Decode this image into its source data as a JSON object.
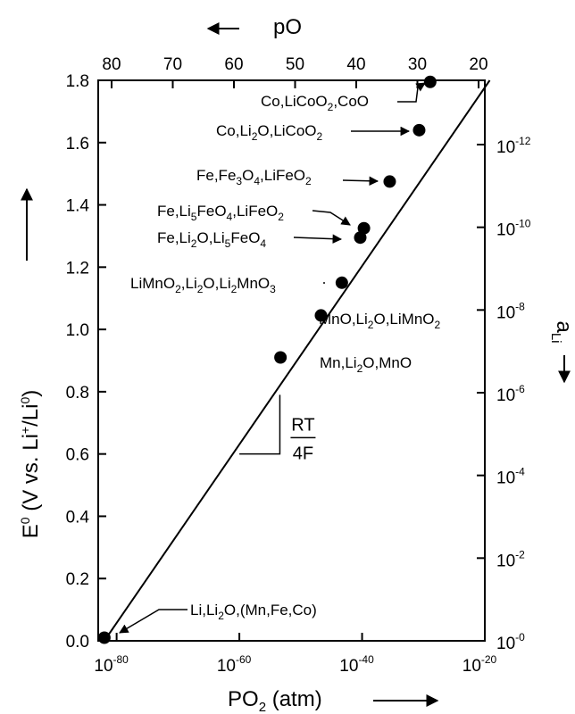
{
  "chart_data": {
    "type": "line",
    "top_axis": {
      "label": "pO",
      "tick_labels": [
        "80",
        "70",
        "60",
        "50",
        "40",
        "30",
        "20"
      ],
      "values": [
        80,
        70,
        60,
        50,
        40,
        30,
        20
      ]
    },
    "bottom_axis": {
      "label": "PO",
      "label_subscript": "2",
      "label_suffix": " (atm)",
      "scale": "log",
      "tick_base": "10",
      "tick_exponents": [
        "-80",
        "-60",
        "-40",
        "-20"
      ],
      "values": [
        -80,
        -60,
        -40,
        -20
      ],
      "range": [
        -83,
        -20
      ]
    },
    "left_axis": {
      "label_main": "E",
      "label_sup": "0",
      "label_mid": " (V vs. Li",
      "label_sup2": "+",
      "label_mid2": "/Li",
      "label_sup3": "0",
      "label_end": ")",
      "ylim": [
        0,
        1.8
      ],
      "tick_labels": [
        "0.0",
        "0.2",
        "0.4",
        "0.6",
        "0.8",
        "1.0",
        "1.2",
        "1.4",
        "1.6",
        "1.8"
      ],
      "values": [
        0,
        0.2,
        0.4,
        0.6,
        0.8,
        1.0,
        1.2,
        1.4,
        1.6,
        1.8
      ]
    },
    "right_axis": {
      "label": "a",
      "label_subscript": "Li",
      "scale": "log",
      "tick_base": "10",
      "tick_exponents": [
        "-0",
        "-2",
        "-4",
        "-6",
        "-8",
        "-10",
        "-12"
      ],
      "values": [
        0,
        -2,
        -4,
        -6,
        -8,
        -10,
        -12
      ]
    },
    "line": {
      "x_start": -82,
      "y_start": 0.0,
      "x_end": -19.2,
      "y_end": 1.8
    },
    "slope_label_top": "RT",
    "slope_label_bottom": "4F",
    "points": [
      {
        "log_po2": -82.0,
        "e0": 0.01
      },
      {
        "log_po2": -53.3,
        "e0": 0.91
      },
      {
        "log_po2": -46.7,
        "e0": 1.045
      },
      {
        "log_po2": -43.3,
        "e0": 1.15
      },
      {
        "log_po2": -40.3,
        "e0": 1.295
      },
      {
        "log_po2": -39.7,
        "e0": 1.325
      },
      {
        "log_po2": -35.5,
        "e0": 1.475
      },
      {
        "log_po2": -30.7,
        "e0": 1.64
      },
      {
        "log_po2": -28.9,
        "e0": 1.795
      }
    ],
    "annotations": [
      [
        "Li,Li",
        "2",
        "O,(Mn,Fe,Co)"
      ],
      [
        "Mn,Li",
        "2",
        "O,MnO"
      ],
      [
        "MnO,Li",
        "2",
        "O,LiMnO",
        "2"
      ],
      [
        "LiMnO",
        "2",
        ",Li",
        "2",
        "O,Li",
        "2",
        "MnO",
        "3"
      ],
      [
        "Fe,Li",
        "2",
        "O,Li",
        "5",
        "FeO",
        "4"
      ],
      [
        "Fe,Li",
        "5",
        "FeO",
        "4",
        ",LiFeO",
        "2"
      ],
      [
        "Fe,Fe",
        "3",
        "O",
        "4",
        ",LiFeO",
        "2"
      ],
      [
        "Co,Li",
        "2",
        "O,LiCoO",
        "2"
      ],
      [
        "Co,LiCoO",
        "2",
        ",CoO"
      ]
    ]
  }
}
